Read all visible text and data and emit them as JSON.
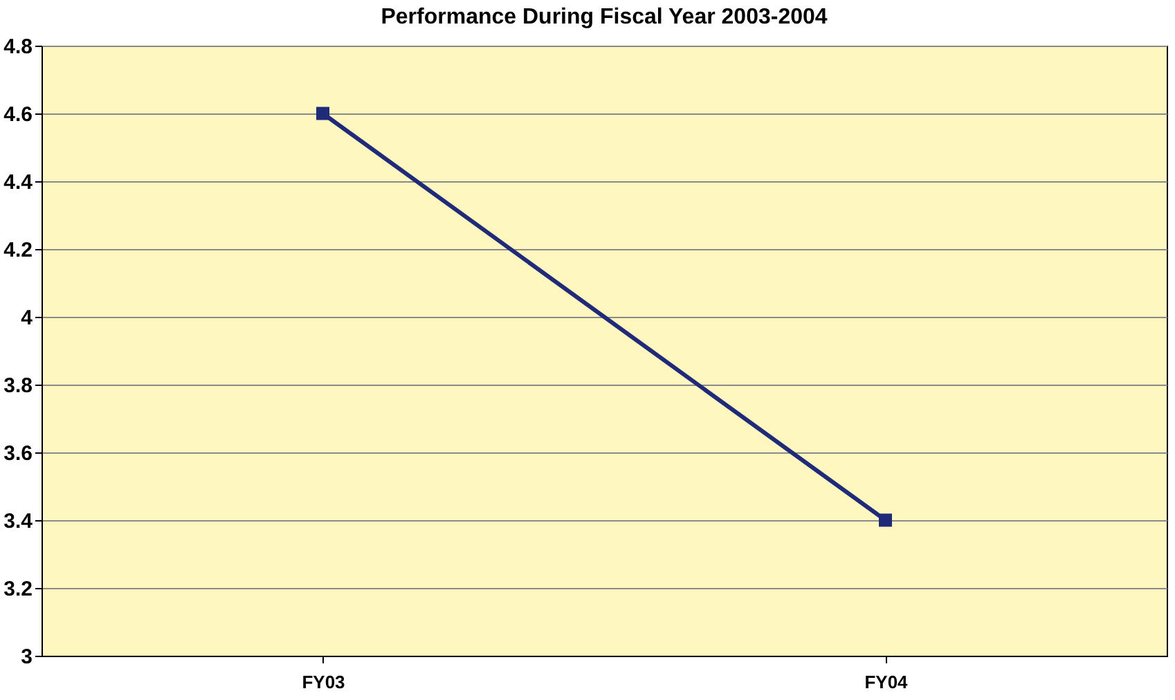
{
  "chart_data": {
    "type": "line",
    "title": "Performance During Fiscal Year 2003-2004",
    "categories": [
      "FY03",
      "FY04"
    ],
    "series": [
      {
        "color": "#1f2a78",
        "values": [
          4.6,
          3.4
        ]
      }
    ],
    "ylim": [
      3,
      4.8
    ],
    "yticks": [
      3,
      3.2,
      3.4,
      3.6,
      3.8,
      4,
      4.2,
      4.4,
      4.6,
      4.8
    ],
    "grid": "y",
    "marker": "square",
    "legend": false
  }
}
